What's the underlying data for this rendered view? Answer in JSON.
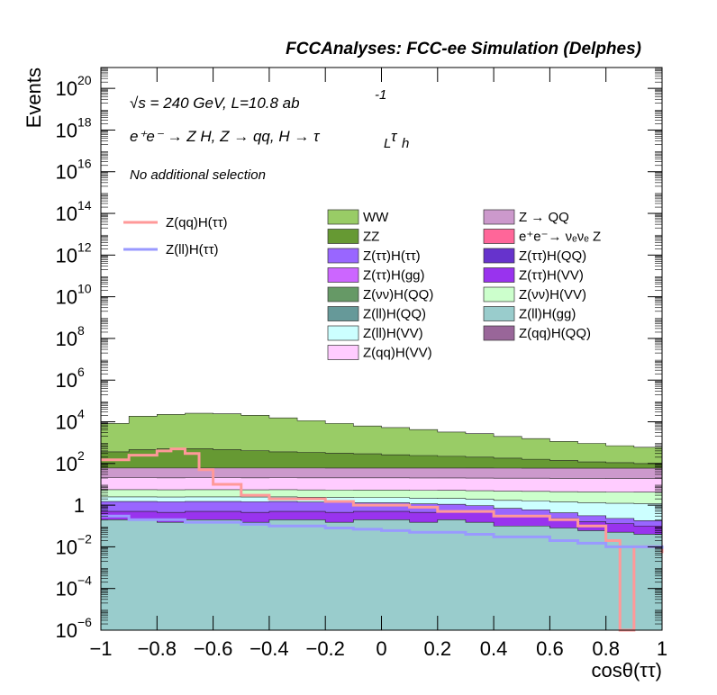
{
  "chart_data": {
    "type": "area",
    "title": "FCCAnalyses: FCC-ee Simulation (Delphes)",
    "xlabel": "cosθ(ττ)",
    "ylabel": "Events",
    "xlim": [
      -1,
      1
    ],
    "ylim": [
      1e-06,
      1e+21
    ],
    "log_y": true,
    "x_ticks": [
      "−1",
      "−0.8",
      "−0.6",
      "−0.4",
      "−0.2",
      "0",
      "0.2",
      "0.4",
      "0.6",
      "0.8",
      "1"
    ],
    "y_ticks": [
      {
        "exp": -6,
        "label_base": "10",
        "label_exp": "−6"
      },
      {
        "exp": -4,
        "label_base": "10",
        "label_exp": "−4"
      },
      {
        "exp": -2,
        "label_base": "10",
        "label_exp": "−2"
      },
      {
        "exp": 0,
        "label_base": "1",
        "label_exp": ""
      },
      {
        "exp": 2,
        "label_base": "10",
        "label_exp": "2"
      },
      {
        "exp": 4,
        "label_base": "10",
        "label_exp": "4"
      },
      {
        "exp": 6,
        "label_base": "10",
        "label_exp": "6"
      },
      {
        "exp": 8,
        "label_base": "10",
        "label_exp": "8"
      },
      {
        "exp": 10,
        "label_base": "10",
        "label_exp": "10"
      },
      {
        "exp": 12,
        "label_base": "10",
        "label_exp": "12"
      },
      {
        "exp": 14,
        "label_base": "10",
        "label_exp": "14"
      },
      {
        "exp": 16,
        "label_base": "10",
        "label_exp": "16"
      },
      {
        "exp": 18,
        "label_base": "10",
        "label_exp": "18"
      },
      {
        "exp": 20,
        "label_base": "10",
        "label_exp": "20"
      }
    ],
    "annotations": {
      "energy_line": "√s = 240 GeV, L=10.8 ab",
      "energy_line_exp": "-1",
      "process_line": "e⁺e⁻ → Z H, Z  → qq, H  → τ",
      "process_sub1": "L",
      "process_tau2": "τ",
      "process_sub2": "h",
      "selection": "No additional selection"
    },
    "stack": [
      {
        "name": "Z(ll)H(gg)",
        "color": "#99cccc",
        "x": [
          -1,
          -0.9,
          -0.8,
          -0.7,
          -0.6,
          -0.5,
          -0.4,
          -0.3,
          -0.2,
          -0.1,
          0,
          0.1,
          0.2,
          0.3,
          0.4,
          0.5,
          0.6,
          0.7,
          0.8,
          0.9,
          1
        ],
        "values": [
          0.2,
          0.2,
          0.15,
          0.2,
          0.2,
          0.15,
          0.2,
          0.2,
          0.15,
          0.2,
          0.2,
          0.15,
          0.2,
          0.15,
          0.1,
          0.1,
          0.08,
          0.06,
          0.05,
          0.04,
          0.03
        ]
      },
      {
        "name": "Z(ττ)H(VV)",
        "color": "#9933ee",
        "x": [
          -1,
          -0.9,
          -0.8,
          -0.7,
          -0.6,
          -0.5,
          -0.4,
          -0.3,
          -0.2,
          -0.1,
          0,
          0.1,
          0.2,
          0.3,
          0.4,
          0.5,
          0.6,
          0.7,
          0.8,
          0.9,
          1
        ],
        "values": [
          0.3,
          0.3,
          0.3,
          0.3,
          0.3,
          0.3,
          0.3,
          0.3,
          0.3,
          0.3,
          0.3,
          0.3,
          0.3,
          0.3,
          0.2,
          0.2,
          0.15,
          0.1,
          0.08,
          0.06,
          0.05
        ]
      },
      {
        "name": "Z(ττ)H(ττ)",
        "color": "#9966ff",
        "x": [
          -1,
          -0.9,
          -0.8,
          -0.7,
          -0.6,
          -0.5,
          -0.4,
          -0.3,
          -0.2,
          -0.1,
          0,
          0.1,
          0.2,
          0.3,
          0.4,
          0.5,
          0.6,
          0.7,
          0.8,
          0.9,
          1
        ],
        "values": [
          1,
          1,
          1,
          1,
          1,
          1,
          1,
          0.9,
          0.9,
          0.8,
          0.8,
          0.7,
          0.6,
          0.5,
          0.4,
          0.3,
          0.2,
          0.15,
          0.1,
          0.08,
          0.06
        ]
      },
      {
        "name": "Z(ll)H(VV)",
        "color": "#ccffff",
        "x": [
          -1,
          -0.9,
          -0.8,
          -0.7,
          -0.6,
          -0.5,
          -0.4,
          -0.3,
          -0.2,
          -0.1,
          0,
          0.1,
          0.2,
          0.3,
          0.4,
          0.5,
          0.6,
          0.7,
          0.8,
          0.9,
          1
        ],
        "values": [
          1,
          1,
          1,
          1,
          1,
          1,
          1,
          1,
          1,
          1,
          1,
          1,
          1,
          1,
          1,
          1,
          1,
          1,
          1,
          1,
          1
        ]
      },
      {
        "name": "Z(νν)H(VV)",
        "color": "#ccffcc",
        "x": [
          -1,
          -0.9,
          -0.8,
          -0.7,
          -0.6,
          -0.5,
          -0.4,
          -0.3,
          -0.2,
          -0.1,
          0,
          0.1,
          0.2,
          0.3,
          0.4,
          0.5,
          0.6,
          0.7,
          0.8,
          0.9,
          1
        ],
        "values": [
          3,
          3,
          3,
          3,
          3,
          3,
          3,
          3,
          3,
          3,
          3,
          3,
          3,
          3,
          3,
          3,
          3,
          3,
          3,
          3,
          3
        ]
      },
      {
        "name": "Z(qq)H(VV)",
        "color": "#ffccff",
        "x": [
          -1,
          -0.9,
          -0.8,
          -0.7,
          -0.6,
          -0.5,
          -0.4,
          -0.3,
          -0.2,
          -0.1,
          0,
          0.1,
          0.2,
          0.3,
          0.4,
          0.5,
          0.6,
          0.7,
          0.8,
          0.9,
          1
        ],
        "values": [
          15,
          15,
          15,
          15,
          15,
          15,
          15,
          15,
          15,
          15,
          15,
          15,
          15,
          15,
          15,
          15,
          15,
          15,
          15,
          15,
          15
        ]
      },
      {
        "name": "Z → QQ",
        "color": "#cc99cc",
        "x": [
          -1,
          -0.9,
          -0.8,
          -0.7,
          -0.6,
          -0.5,
          -0.4,
          -0.3,
          -0.2,
          -0.1,
          0,
          0.1,
          0.2,
          0.3,
          0.4,
          0.5,
          0.6,
          0.7,
          0.8,
          0.9,
          1
        ],
        "values": [
          40,
          40,
          40,
          40,
          40,
          40,
          40,
          40,
          40,
          40,
          40,
          40,
          40,
          40,
          40,
          40,
          40,
          40,
          40,
          40,
          40
        ]
      },
      {
        "name": "ZZ",
        "color": "#669933",
        "x": [
          -1,
          -0.9,
          -0.8,
          -0.7,
          -0.6,
          -0.5,
          -0.4,
          -0.3,
          -0.2,
          -0.1,
          0,
          0.1,
          0.2,
          0.3,
          0.4,
          0.5,
          0.6,
          0.7,
          0.8,
          0.9,
          1
        ],
        "values": [
          300,
          400,
          450,
          450,
          400,
          350,
          300,
          280,
          250,
          230,
          200,
          180,
          160,
          140,
          120,
          100,
          80,
          60,
          50,
          40,
          30
        ]
      },
      {
        "name": "WW",
        "color": "#99cc66",
        "x": [
          -1,
          -0.9,
          -0.8,
          -0.7,
          -0.6,
          -0.5,
          -0.4,
          -0.3,
          -0.2,
          -0.1,
          0,
          0.1,
          0.2,
          0.3,
          0.4,
          0.5,
          0.6,
          0.7,
          0.8,
          0.9,
          1
        ],
        "values": [
          8000,
          18000,
          22000,
          25000,
          24000,
          20000,
          15000,
          11000,
          8000,
          6000,
          5000,
          4000,
          3000,
          2500,
          1800,
          1400,
          1000,
          800,
          600,
          500,
          450
        ]
      }
    ],
    "lines": [
      {
        "name": "Z(qq)H(ττ)",
        "color": "#ff9999",
        "x": [
          -1,
          -0.9,
          -0.8,
          -0.75,
          -0.7,
          -0.65,
          -0.6,
          -0.5,
          -0.4,
          -0.3,
          -0.2,
          -0.1,
          0,
          0.1,
          0.2,
          0.3,
          0.4,
          0.5,
          0.6,
          0.7,
          0.8,
          0.85,
          0.9,
          1
        ],
        "values": [
          150,
          250,
          400,
          500,
          300,
          50,
          10,
          3,
          2,
          2,
          1.5,
          1,
          1,
          0.8,
          0.5,
          0.5,
          0.3,
          0.3,
          0.2,
          0.1,
          0.02,
          1e-06,
          0.01,
          0.005
        ]
      },
      {
        "name": "Z(ll)H(ττ)",
        "color": "#9999ff",
        "x": [
          -1,
          -0.9,
          -0.8,
          -0.7,
          -0.6,
          -0.5,
          -0.4,
          -0.3,
          -0.2,
          -0.1,
          0,
          0.1,
          0.2,
          0.3,
          0.4,
          0.5,
          0.6,
          0.7,
          0.8,
          0.9,
          1
        ],
        "values": [
          0.3,
          0.2,
          0.2,
          0.15,
          0.15,
          0.12,
          0.1,
          0.1,
          0.08,
          0.07,
          0.06,
          0.05,
          0.05,
          0.04,
          0.03,
          0.03,
          0.02,
          0.015,
          0.01,
          0.01,
          0.008
        ]
      }
    ],
    "legend_left": [
      "Z(qq)H(ττ)",
      "Z(ll)H(ττ)"
    ],
    "legend_mid": [
      {
        "label": "WW",
        "color": "#99cc66"
      },
      {
        "label": "ZZ",
        "color": "#669933"
      },
      {
        "label": "Z(ττ)H(ττ)",
        "color": "#9966ff"
      },
      {
        "label": "Z(ττ)H(gg)",
        "color": "#cc66ff"
      },
      {
        "label": "Z(νν)H(QQ)",
        "color": "#669966"
      },
      {
        "label": "Z(ll)H(QQ)",
        "color": "#669999"
      },
      {
        "label": "Z(ll)H(VV)",
        "color": "#ccffff"
      },
      {
        "label": "Z(qq)H(VV)",
        "color": "#ffccff"
      }
    ],
    "legend_right": [
      {
        "label": "Z → QQ",
        "color": "#cc99cc"
      },
      {
        "label": "e⁺e⁻→ νₑνₑ Z",
        "color": "#ff6699"
      },
      {
        "label": "Z(ττ)H(QQ)",
        "color": "#6633cc"
      },
      {
        "label": "Z(ττ)H(VV)",
        "color": "#9933ee"
      },
      {
        "label": "Z(νν)H(VV)",
        "color": "#ccffcc"
      },
      {
        "label": "Z(ll)H(gg)",
        "color": "#99cccc"
      },
      {
        "label": "Z(qq)H(QQ)",
        "color": "#996699"
      }
    ]
  }
}
